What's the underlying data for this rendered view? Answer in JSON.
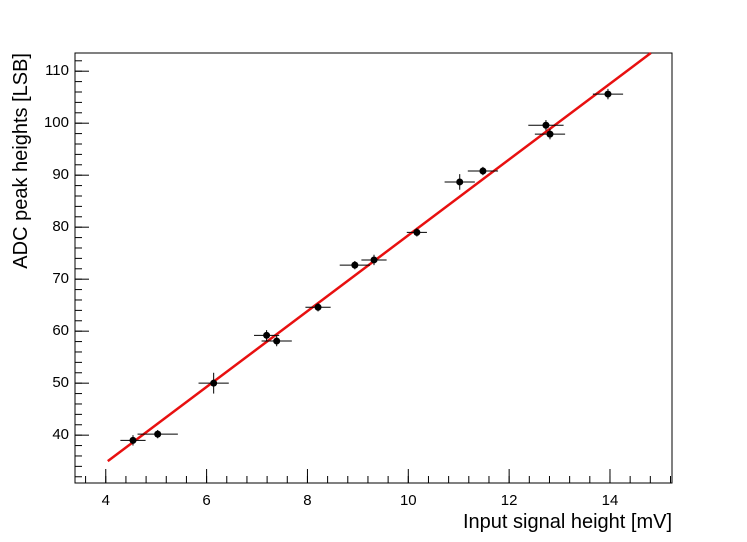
{
  "chart_data": {
    "type": "scatter",
    "x_label": "Input signal height [mV]",
    "y_label": "ADC peak heights [LSB]",
    "xlim": [
      3.39,
      15.23
    ],
    "ylim": [
      30.8,
      113.5
    ],
    "xticks": [
      4,
      6,
      8,
      10,
      12,
      14
    ],
    "yticks": [
      40,
      50,
      60,
      70,
      80,
      90,
      100,
      110
    ],
    "series": [
      {
        "color": "#000000",
        "x": [
          4.54,
          5.03,
          6.14,
          7.19,
          7.39,
          8.21,
          8.94,
          9.32,
          10.17,
          11.02,
          11.48,
          12.73,
          12.81,
          13.96
        ],
        "values": [
          39.0,
          40.2,
          50.0,
          59.2,
          58.1,
          64.6,
          72.7,
          73.7,
          79.0,
          88.7,
          90.8,
          99.6,
          97.9,
          105.6
        ],
        "xerr": [
          0.25,
          0.4,
          0.3,
          0.25,
          0.3,
          0.25,
          0.3,
          0.25,
          0.2,
          0.3,
          0.3,
          0.35,
          0.3,
          0.3
        ],
        "yerr": [
          1,
          0.8,
          2,
          1,
          1,
          0.8,
          0.8,
          1,
          0.8,
          1.5,
          0.8,
          1,
          1,
          1
        ]
      }
    ],
    "fit": {
      "color": "#e81010",
      "x": [
        4.04,
        14.81
      ],
      "values": [
        35.0,
        113.5
      ]
    }
  }
}
